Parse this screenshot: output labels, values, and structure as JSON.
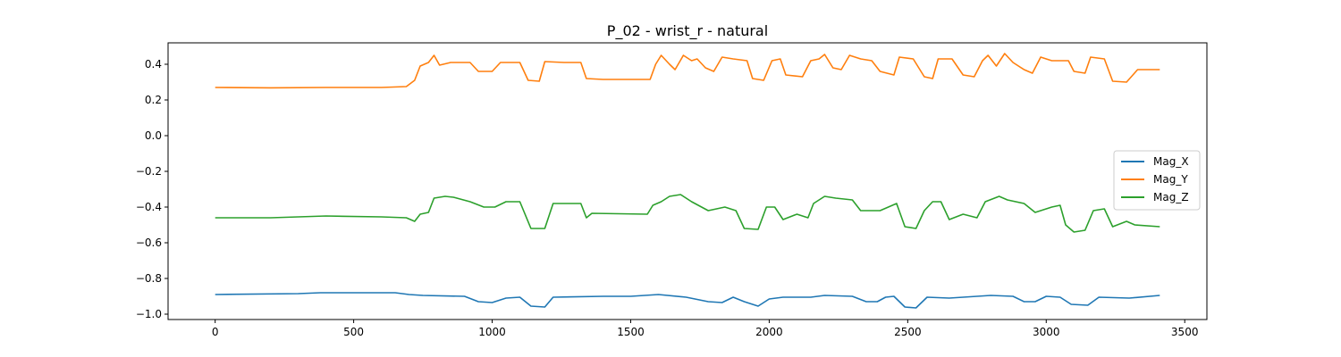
{
  "chart_data": {
    "type": "line",
    "title": "P_02 - wrist_r - natural",
    "xlabel": "",
    "ylabel": "",
    "xlim": [
      -170,
      3580
    ],
    "ylim": [
      -1.03,
      0.52
    ],
    "xticks": [
      0,
      500,
      1000,
      1500,
      2000,
      2500,
      3000,
      3500
    ],
    "yticks": [
      -1.0,
      -0.8,
      -0.6,
      -0.4,
      -0.2,
      0.0,
      0.2,
      0.4
    ],
    "grid": false,
    "legend_position": "center-right",
    "series": [
      {
        "name": "Mag_X",
        "color": "#1f77b4",
        "points": [
          [
            0,
            -0.89
          ],
          [
            300,
            -0.885
          ],
          [
            380,
            -0.88
          ],
          [
            650,
            -0.88
          ],
          [
            700,
            -0.89
          ],
          [
            750,
            -0.895
          ],
          [
            900,
            -0.9
          ],
          [
            950,
            -0.93
          ],
          [
            1000,
            -0.935
          ],
          [
            1050,
            -0.91
          ],
          [
            1100,
            -0.905
          ],
          [
            1140,
            -0.955
          ],
          [
            1190,
            -0.96
          ],
          [
            1220,
            -0.905
          ],
          [
            1400,
            -0.9
          ],
          [
            1500,
            -0.9
          ],
          [
            1600,
            -0.89
          ],
          [
            1700,
            -0.905
          ],
          [
            1780,
            -0.93
          ],
          [
            1830,
            -0.935
          ],
          [
            1870,
            -0.905
          ],
          [
            1910,
            -0.93
          ],
          [
            1960,
            -0.955
          ],
          [
            2000,
            -0.915
          ],
          [
            2050,
            -0.905
          ],
          [
            2150,
            -0.905
          ],
          [
            2200,
            -0.895
          ],
          [
            2300,
            -0.9
          ],
          [
            2350,
            -0.93
          ],
          [
            2390,
            -0.93
          ],
          [
            2420,
            -0.905
          ],
          [
            2450,
            -0.9
          ],
          [
            2490,
            -0.96
          ],
          [
            2530,
            -0.965
          ],
          [
            2570,
            -0.905
          ],
          [
            2650,
            -0.91
          ],
          [
            2700,
            -0.905
          ],
          [
            2800,
            -0.895
          ],
          [
            2880,
            -0.9
          ],
          [
            2920,
            -0.93
          ],
          [
            2960,
            -0.93
          ],
          [
            3000,
            -0.9
          ],
          [
            3050,
            -0.905
          ],
          [
            3090,
            -0.945
          ],
          [
            3150,
            -0.95
          ],
          [
            3190,
            -0.905
          ],
          [
            3300,
            -0.91
          ],
          [
            3410,
            -0.895
          ]
        ]
      },
      {
        "name": "Mag_Y",
        "color": "#ff7f0e",
        "points": [
          [
            0,
            0.27
          ],
          [
            200,
            0.268
          ],
          [
            400,
            0.27
          ],
          [
            600,
            0.27
          ],
          [
            690,
            0.275
          ],
          [
            720,
            0.31
          ],
          [
            740,
            0.39
          ],
          [
            770,
            0.41
          ],
          [
            790,
            0.45
          ],
          [
            810,
            0.395
          ],
          [
            850,
            0.41
          ],
          [
            920,
            0.41
          ],
          [
            950,
            0.36
          ],
          [
            1000,
            0.36
          ],
          [
            1030,
            0.41
          ],
          [
            1100,
            0.41
          ],
          [
            1130,
            0.31
          ],
          [
            1170,
            0.305
          ],
          [
            1190,
            0.415
          ],
          [
            1260,
            0.41
          ],
          [
            1320,
            0.41
          ],
          [
            1340,
            0.32
          ],
          [
            1400,
            0.315
          ],
          [
            1500,
            0.315
          ],
          [
            1570,
            0.315
          ],
          [
            1590,
            0.4
          ],
          [
            1610,
            0.45
          ],
          [
            1640,
            0.4
          ],
          [
            1660,
            0.37
          ],
          [
            1690,
            0.45
          ],
          [
            1720,
            0.42
          ],
          [
            1740,
            0.43
          ],
          [
            1770,
            0.38
          ],
          [
            1800,
            0.36
          ],
          [
            1830,
            0.44
          ],
          [
            1870,
            0.43
          ],
          [
            1920,
            0.42
          ],
          [
            1940,
            0.32
          ],
          [
            1980,
            0.31
          ],
          [
            2010,
            0.42
          ],
          [
            2040,
            0.43
          ],
          [
            2060,
            0.34
          ],
          [
            2120,
            0.33
          ],
          [
            2150,
            0.42
          ],
          [
            2180,
            0.43
          ],
          [
            2200,
            0.455
          ],
          [
            2230,
            0.38
          ],
          [
            2260,
            0.37
          ],
          [
            2290,
            0.45
          ],
          [
            2330,
            0.43
          ],
          [
            2370,
            0.42
          ],
          [
            2400,
            0.36
          ],
          [
            2450,
            0.34
          ],
          [
            2470,
            0.44
          ],
          [
            2520,
            0.43
          ],
          [
            2560,
            0.33
          ],
          [
            2590,
            0.32
          ],
          [
            2610,
            0.43
          ],
          [
            2660,
            0.43
          ],
          [
            2700,
            0.34
          ],
          [
            2740,
            0.33
          ],
          [
            2770,
            0.42
          ],
          [
            2790,
            0.45
          ],
          [
            2820,
            0.39
          ],
          [
            2850,
            0.46
          ],
          [
            2880,
            0.41
          ],
          [
            2920,
            0.37
          ],
          [
            2950,
            0.35
          ],
          [
            2980,
            0.44
          ],
          [
            3020,
            0.42
          ],
          [
            3080,
            0.42
          ],
          [
            3100,
            0.36
          ],
          [
            3140,
            0.35
          ],
          [
            3160,
            0.44
          ],
          [
            3210,
            0.43
          ],
          [
            3240,
            0.305
          ],
          [
            3290,
            0.3
          ],
          [
            3330,
            0.37
          ],
          [
            3410,
            0.37
          ]
        ]
      },
      {
        "name": "Mag_Z",
        "color": "#2ca02c",
        "points": [
          [
            0,
            -0.46
          ],
          [
            200,
            -0.46
          ],
          [
            400,
            -0.45
          ],
          [
            600,
            -0.455
          ],
          [
            690,
            -0.46
          ],
          [
            720,
            -0.48
          ],
          [
            740,
            -0.44
          ],
          [
            770,
            -0.43
          ],
          [
            790,
            -0.35
          ],
          [
            830,
            -0.34
          ],
          [
            860,
            -0.345
          ],
          [
            920,
            -0.37
          ],
          [
            970,
            -0.4
          ],
          [
            1010,
            -0.4
          ],
          [
            1050,
            -0.37
          ],
          [
            1100,
            -0.37
          ],
          [
            1140,
            -0.52
          ],
          [
            1190,
            -0.52
          ],
          [
            1220,
            -0.38
          ],
          [
            1320,
            -0.38
          ],
          [
            1340,
            -0.46
          ],
          [
            1360,
            -0.435
          ],
          [
            1560,
            -0.44
          ],
          [
            1580,
            -0.39
          ],
          [
            1610,
            -0.37
          ],
          [
            1640,
            -0.34
          ],
          [
            1680,
            -0.33
          ],
          [
            1720,
            -0.37
          ],
          [
            1780,
            -0.42
          ],
          [
            1840,
            -0.4
          ],
          [
            1880,
            -0.42
          ],
          [
            1910,
            -0.52
          ],
          [
            1960,
            -0.525
          ],
          [
            1990,
            -0.4
          ],
          [
            2020,
            -0.4
          ],
          [
            2050,
            -0.47
          ],
          [
            2100,
            -0.44
          ],
          [
            2140,
            -0.46
          ],
          [
            2160,
            -0.38
          ],
          [
            2200,
            -0.34
          ],
          [
            2240,
            -0.35
          ],
          [
            2300,
            -0.36
          ],
          [
            2330,
            -0.42
          ],
          [
            2400,
            -0.42
          ],
          [
            2460,
            -0.38
          ],
          [
            2490,
            -0.51
          ],
          [
            2530,
            -0.52
          ],
          [
            2560,
            -0.42
          ],
          [
            2590,
            -0.37
          ],
          [
            2620,
            -0.37
          ],
          [
            2650,
            -0.47
          ],
          [
            2700,
            -0.44
          ],
          [
            2750,
            -0.46
          ],
          [
            2780,
            -0.37
          ],
          [
            2830,
            -0.34
          ],
          [
            2860,
            -0.36
          ],
          [
            2920,
            -0.38
          ],
          [
            2960,
            -0.43
          ],
          [
            3020,
            -0.4
          ],
          [
            3050,
            -0.39
          ],
          [
            3070,
            -0.5
          ],
          [
            3100,
            -0.54
          ],
          [
            3140,
            -0.53
          ],
          [
            3170,
            -0.42
          ],
          [
            3210,
            -0.41
          ],
          [
            3240,
            -0.51
          ],
          [
            3290,
            -0.48
          ],
          [
            3320,
            -0.5
          ],
          [
            3410,
            -0.51
          ]
        ]
      }
    ]
  }
}
